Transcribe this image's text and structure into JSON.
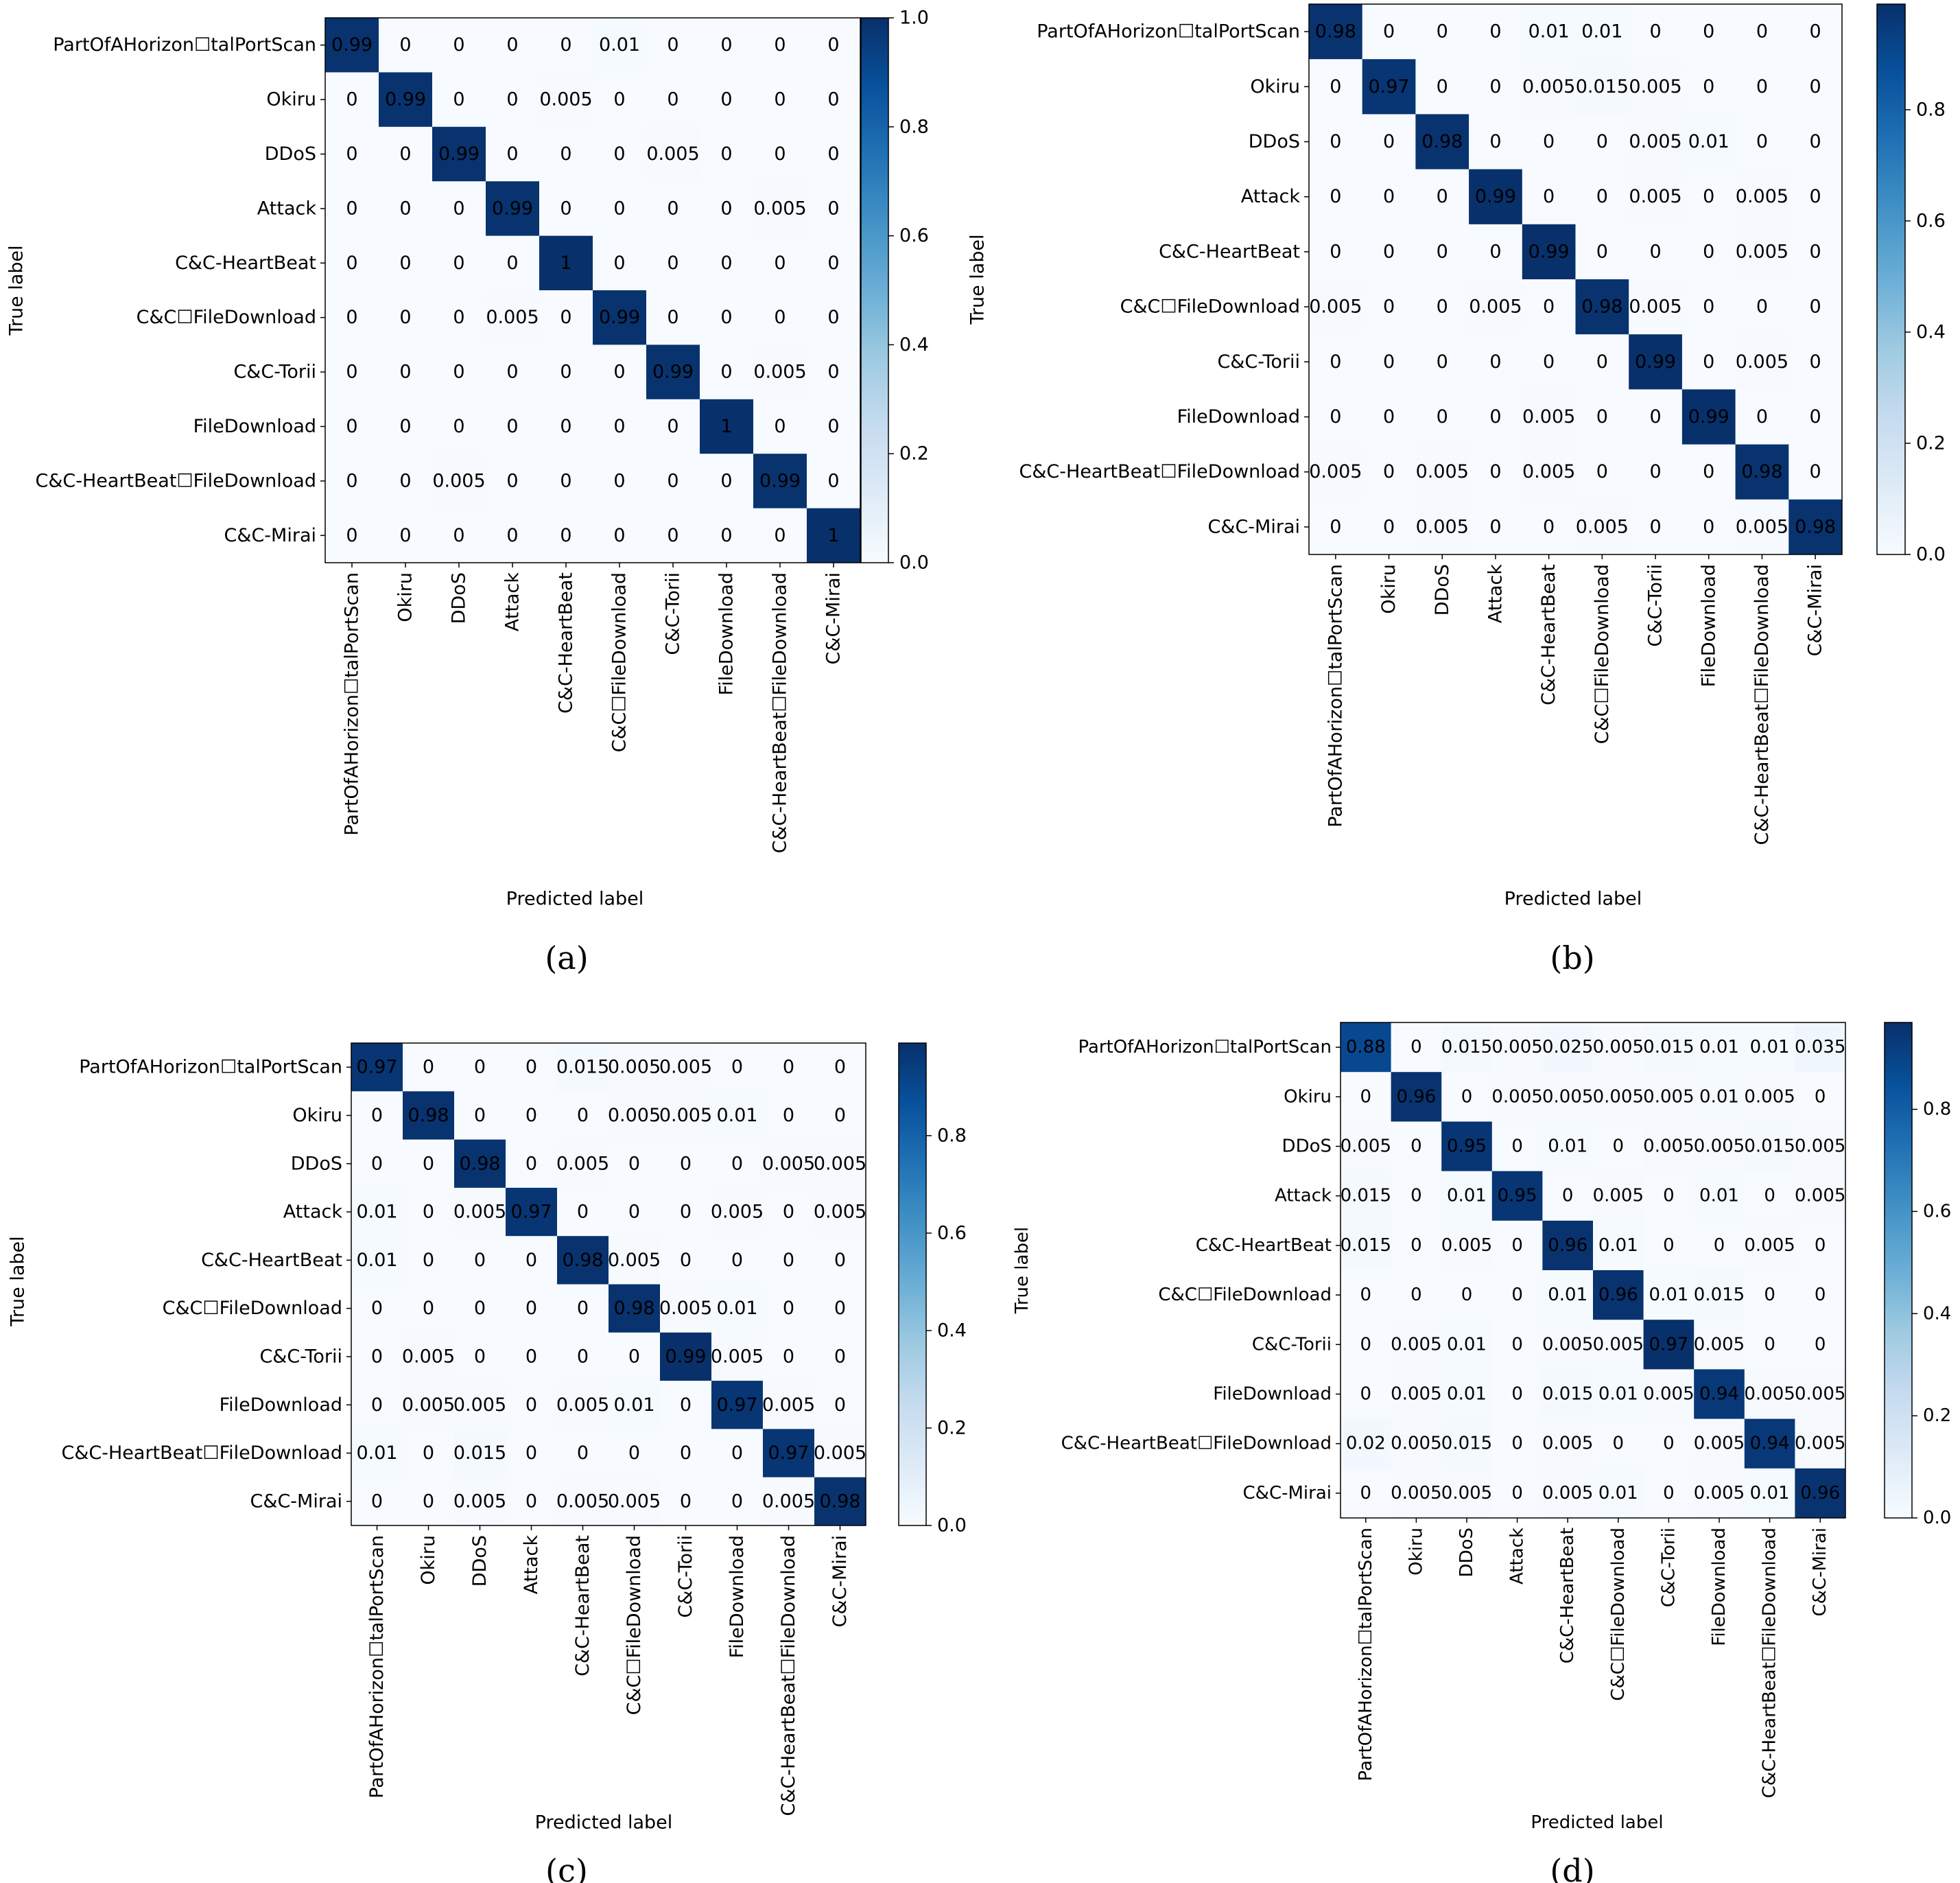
{
  "chart_data": [
    {
      "type": "heatmap",
      "caption": "(a)",
      "xlabel": "Predicted label",
      "ylabel": "True label",
      "labels": [
        "PartOfAHorizon☐talPortScan",
        "Okiru",
        "DDoS",
        "Attack",
        "C&C-HeartBeat",
        "C&C☐FileDownload",
        "C&C-Torii",
        "FileDownload",
        "C&C-HeartBeat☐FileDownload",
        "C&C-Mirai"
      ],
      "cells": [
        [
          "0.99",
          "0",
          "0",
          "0",
          "0",
          "0.01",
          "0",
          "0",
          "0",
          "0"
        ],
        [
          "0",
          "0.99",
          "0",
          "0",
          "0.005",
          "0",
          "0",
          "0",
          "0",
          "0"
        ],
        [
          "0",
          "0",
          "0.99",
          "0",
          "0",
          "0",
          "0.005",
          "0",
          "0",
          "0"
        ],
        [
          "0",
          "0",
          "0",
          "0.99",
          "0",
          "0",
          "0",
          "0",
          "0.005",
          "0"
        ],
        [
          "0",
          "0",
          "0",
          "0",
          "1",
          "0",
          "0",
          "0",
          "0",
          "0"
        ],
        [
          "0",
          "0",
          "0",
          "0.005",
          "0",
          "0.99",
          "0",
          "0",
          "0",
          "0"
        ],
        [
          "0",
          "0",
          "0",
          "0",
          "0",
          "0",
          "0.99",
          "0",
          "0.005",
          "0"
        ],
        [
          "0",
          "0",
          "0",
          "0",
          "0",
          "0",
          "0",
          "1",
          "0",
          "0"
        ],
        [
          "0",
          "0",
          "0.005",
          "0",
          "0",
          "0",
          "0",
          "0",
          "0.99",
          "0"
        ],
        [
          "0",
          "0",
          "0",
          "0",
          "0",
          "0",
          "0",
          "0",
          "0",
          "1"
        ]
      ],
      "colorbar": {
        "range": [
          0,
          1.0
        ],
        "ticks": [
          "0.0",
          "0.2",
          "0.4",
          "0.6",
          "0.8",
          "1.0"
        ]
      }
    },
    {
      "type": "heatmap",
      "caption": "(b)",
      "xlabel": "Predicted label",
      "ylabel": "True label",
      "labels": [
        "PartOfAHorizon☐talPortScan",
        "Okiru",
        "DDoS",
        "Attack",
        "C&C-HeartBeat",
        "C&C☐FileDownload",
        "C&C-Torii",
        "FileDownload",
        "C&C-HeartBeat☐FileDownload",
        "C&C-Mirai"
      ],
      "cells": [
        [
          "0.98",
          "0",
          "0",
          "0",
          "0.01",
          "0.01",
          "0",
          "0",
          "0",
          "0"
        ],
        [
          "0",
          "0.97",
          "0",
          "0",
          "0.005",
          "0.015",
          "0.005",
          "0",
          "0",
          "0"
        ],
        [
          "0",
          "0",
          "0.98",
          "0",
          "0",
          "0",
          "0.005",
          "0.01",
          "0",
          "0"
        ],
        [
          "0",
          "0",
          "0",
          "0.99",
          "0",
          "0",
          "0.005",
          "0",
          "0.005",
          "0"
        ],
        [
          "0",
          "0",
          "0",
          "0",
          "0.99",
          "0",
          "0",
          "0",
          "0.005",
          "0"
        ],
        [
          "0.005",
          "0",
          "0",
          "0.005",
          "0",
          "0.98",
          "0.005",
          "0",
          "0",
          "0"
        ],
        [
          "0",
          "0",
          "0",
          "0",
          "0",
          "0",
          "0.99",
          "0",
          "0.005",
          "0"
        ],
        [
          "0",
          "0",
          "0",
          "0",
          "0.005",
          "0",
          "0",
          "0.99",
          "0",
          "0"
        ],
        [
          "0.005",
          "0",
          "0.005",
          "0",
          "0.005",
          "0",
          "0",
          "0",
          "0.98",
          "0"
        ],
        [
          "0",
          "0",
          "0.005",
          "0",
          "0",
          "0.005",
          "0",
          "0",
          "0.005",
          "0.98"
        ]
      ],
      "colorbar": {
        "range": [
          0,
          0.99
        ],
        "ticks": [
          "0.0",
          "0.2",
          "0.4",
          "0.6",
          "0.8"
        ]
      }
    },
    {
      "type": "heatmap",
      "caption": "(c)",
      "xlabel": "Predicted label",
      "ylabel": "True label",
      "labels": [
        "PartOfAHorizon☐talPortScan",
        "Okiru",
        "DDoS",
        "Attack",
        "C&C-HeartBeat",
        "C&C☐FileDownload",
        "C&C-Torii",
        "FileDownload",
        "C&C-HeartBeat☐FileDownload",
        "C&C-Mirai"
      ],
      "cells": [
        [
          "0.97",
          "0",
          "0",
          "0",
          "0.015",
          "0.005",
          "0.005",
          "0",
          "0",
          "0"
        ],
        [
          "0",
          "0.98",
          "0",
          "0",
          "0",
          "0.005",
          "0.005",
          "0.01",
          "0",
          "0"
        ],
        [
          "0",
          "0",
          "0.98",
          "0",
          "0.005",
          "0",
          "0",
          "0",
          "0.005",
          "0.005"
        ],
        [
          "0.01",
          "0",
          "0.005",
          "0.97",
          "0",
          "0",
          "0",
          "0.005",
          "0",
          "0.005"
        ],
        [
          "0.01",
          "0",
          "0",
          "0",
          "0.98",
          "0.005",
          "0",
          "0",
          "0",
          "0"
        ],
        [
          "0",
          "0",
          "0",
          "0",
          "0",
          "0.98",
          "0.005",
          "0.01",
          "0",
          "0"
        ],
        [
          "0",
          "0.005",
          "0",
          "0",
          "0",
          "0",
          "0.99",
          "0.005",
          "0",
          "0"
        ],
        [
          "0",
          "0.005",
          "0.005",
          "0",
          "0.005",
          "0.01",
          "0",
          "0.97",
          "0.005",
          "0"
        ],
        [
          "0.01",
          "0",
          "0.015",
          "0",
          "0",
          "0",
          "0",
          "0",
          "0.97",
          "0.005"
        ],
        [
          "0",
          "0",
          "0.005",
          "0",
          "0.005",
          "0.005",
          "0",
          "0",
          "0.005",
          "0.98"
        ]
      ],
      "colorbar": {
        "range": [
          0,
          0.99
        ],
        "ticks": [
          "0.0",
          "0.2",
          "0.4",
          "0.6",
          "0.8"
        ]
      }
    },
    {
      "type": "heatmap",
      "caption": "(d)",
      "xlabel": "Predicted label",
      "ylabel": "True label",
      "labels": [
        "PartOfAHorizon☐talPortScan",
        "Okiru",
        "DDoS",
        "Attack",
        "C&C-HeartBeat",
        "C&C☐FileDownload",
        "C&C-Torii",
        "FileDownload",
        "C&C-HeartBeat☐FileDownload",
        "C&C-Mirai"
      ],
      "cells": [
        [
          "0.88",
          "0",
          "0.015",
          "0.005",
          "0.025",
          "0.005",
          "0.015",
          "0.01",
          "0.01",
          "0.035"
        ],
        [
          "0",
          "0.96",
          "0",
          "0.005",
          "0.005",
          "0.005",
          "0.005",
          "0.01",
          "0.005",
          "0"
        ],
        [
          "0.005",
          "0",
          "0.95",
          "0",
          "0.01",
          "0",
          "0.005",
          "0.005",
          "0.015",
          "0.005"
        ],
        [
          "0.015",
          "0",
          "0.01",
          "0.95",
          "0",
          "0.005",
          "0",
          "0.01",
          "0",
          "0.005"
        ],
        [
          "0.015",
          "0",
          "0.005",
          "0",
          "0.96",
          "0.01",
          "0",
          "0",
          "0.005",
          "0"
        ],
        [
          "0",
          "0",
          "0",
          "0",
          "0.01",
          "0.96",
          "0.01",
          "0.015",
          "0",
          "0"
        ],
        [
          "0",
          "0.005",
          "0.01",
          "0",
          "0.005",
          "0.005",
          "0.97",
          "0.005",
          "0",
          "0"
        ],
        [
          "0",
          "0.005",
          "0.01",
          "0",
          "0.015",
          "0.01",
          "0.005",
          "0.94",
          "0.005",
          "0.005"
        ],
        [
          "0.02",
          "0.005",
          "0.015",
          "0",
          "0.005",
          "0",
          "0",
          "0.005",
          "0.94",
          "0.005"
        ],
        [
          "0",
          "0.005",
          "0.005",
          "0",
          "0.005",
          "0.01",
          "0",
          "0.005",
          "0.01",
          "0.96"
        ]
      ],
      "colorbar": {
        "range": [
          0,
          0.97
        ],
        "ticks": [
          "0.0",
          "0.2",
          "0.4",
          "0.6",
          "0.8"
        ]
      }
    }
  ]
}
